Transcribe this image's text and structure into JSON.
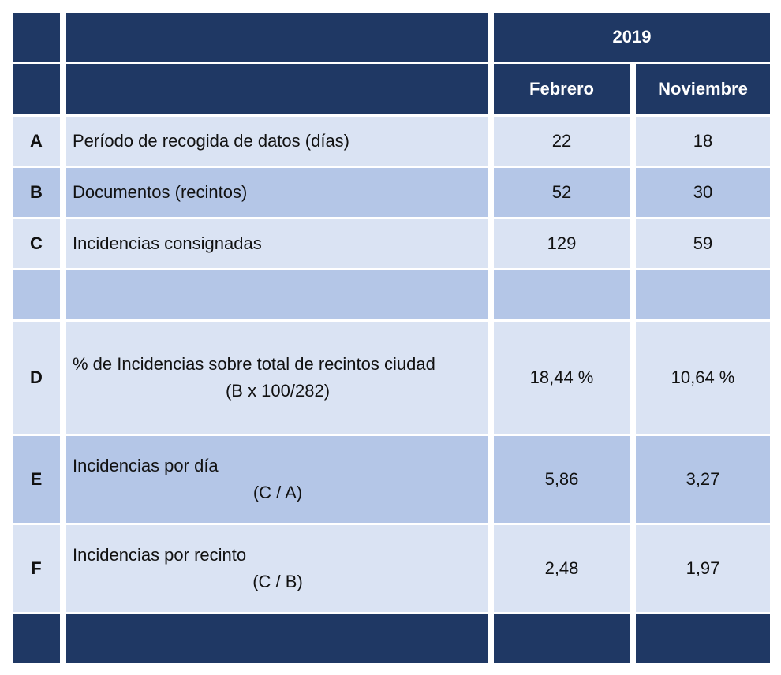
{
  "header": {
    "year": "2019",
    "months": [
      "Febrero",
      "Noviembre"
    ]
  },
  "rows": [
    {
      "key": "A",
      "label": "Período de recogida de datos (días)",
      "sub": "",
      "feb": "22",
      "nov": "18"
    },
    {
      "key": "B",
      "label": "Documentos (recintos)",
      "sub": "",
      "feb": "52",
      "nov": "30"
    },
    {
      "key": "C",
      "label": "Incidencias consignadas",
      "sub": "",
      "feb": "129",
      "nov": "59"
    },
    {
      "key": "D",
      "label": "% de Incidencias sobre total de recintos ciudad",
      "sub": "(B x 100/282)",
      "feb": "18,44 %",
      "nov": "10,64 %"
    },
    {
      "key": "E",
      "label": "Incidencias por día",
      "sub": "(C / A)",
      "feb": "5,86",
      "nov": "3,27"
    },
    {
      "key": "F",
      "label": "Incidencias por recinto",
      "sub": "(C / B)",
      "feb": "2,48",
      "nov": "1,97"
    }
  ],
  "colors": {
    "header": "#1f3864",
    "row_light": "#dae3f3",
    "row_mid": "#b4c6e7"
  }
}
